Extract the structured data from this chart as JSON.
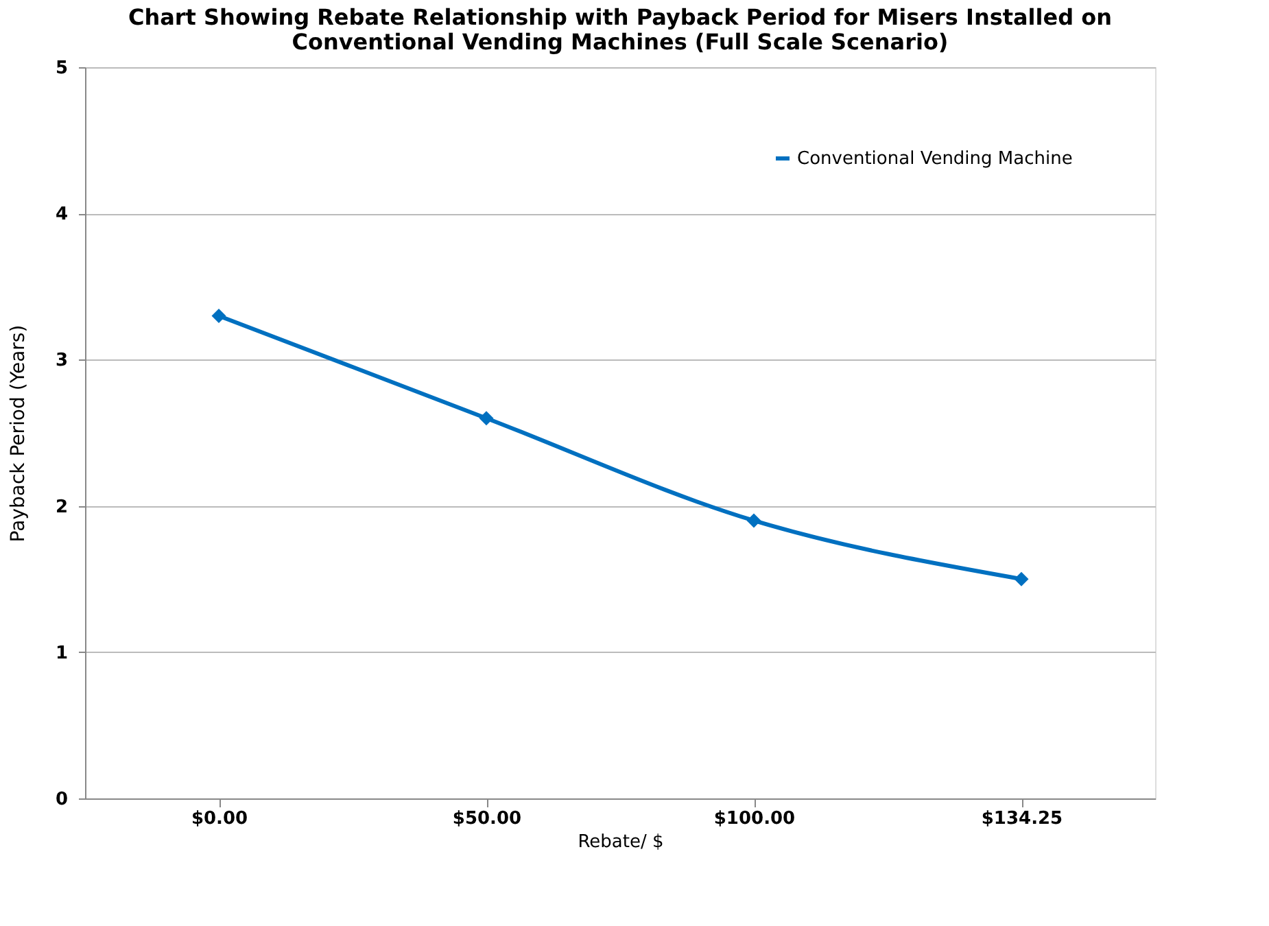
{
  "chart_data": {
    "type": "line",
    "title": [
      "Chart Showing Rebate Relationship with Payback Period for Misers Installed on",
      "Conventional Vending Machines (Full Scale Scenario)"
    ],
    "xlabel": "Rebate/ $",
    "ylabel": "Payback Period (Years)",
    "categories": [
      "$0.00",
      "$50.00",
      "$100.00",
      "$134.25"
    ],
    "series": [
      {
        "name": "Conventional Vending Machine",
        "color": "#0070c0",
        "values": [
          3.3,
          2.6,
          1.9,
          1.5
        ]
      }
    ],
    "ylim": [
      0,
      5
    ],
    "yticks": [
      0,
      1,
      2,
      3,
      4,
      5
    ],
    "grid": "y",
    "legend": "top right",
    "marker": "diamond",
    "line_style": "solid"
  }
}
